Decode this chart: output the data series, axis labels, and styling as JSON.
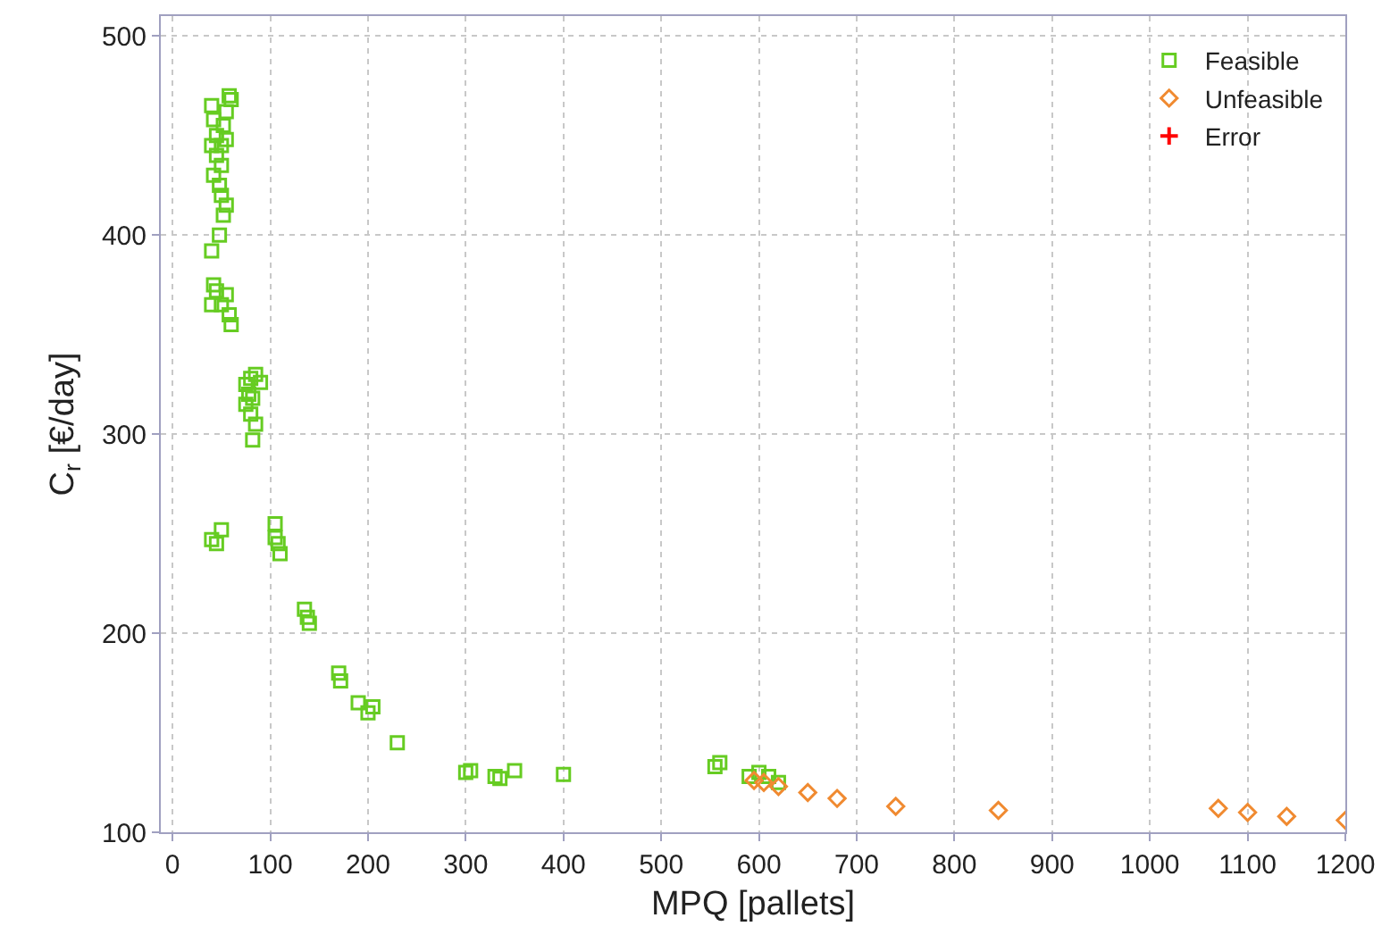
{
  "chart_data": {
    "type": "scatter",
    "xlabel": "MPQ [pallets]",
    "ylabel": "C$_{r}$ [€/day]",
    "xlim": [
      -12,
      1200
    ],
    "ylim": [
      100,
      510
    ],
    "xticks": [
      0,
      100,
      200,
      300,
      400,
      500,
      600,
      700,
      800,
      900,
      1000,
      1100,
      1200
    ],
    "yticks": [
      100,
      200,
      300,
      400,
      500
    ],
    "grid": true,
    "legend": "top right",
    "series": [
      {
        "name": "Feasible",
        "color": "#66cc22",
        "marker": "square",
        "x": [
          40,
          42,
          45,
          40,
          45,
          50,
          42,
          48,
          50,
          55,
          52,
          48,
          40,
          42,
          45,
          50,
          40,
          55,
          58,
          60,
          55,
          58,
          60,
          52,
          55,
          50,
          75,
          80,
          85,
          90,
          78,
          82,
          75,
          80,
          85,
          82,
          40,
          45,
          50,
          105,
          105,
          108,
          110,
          135,
          138,
          140,
          170,
          172,
          190,
          200,
          205,
          230,
          300,
          305,
          330,
          335,
          350,
          400,
          555,
          560,
          590,
          600,
          610,
          620
        ],
        "values": [
          465,
          458,
          450,
          445,
          440,
          435,
          430,
          425,
          420,
          415,
          410,
          400,
          392,
          375,
          372,
          365,
          365,
          370,
          360,
          355,
          462,
          470,
          468,
          455,
          448,
          445,
          325,
          328,
          330,
          326,
          320,
          318,
          315,
          310,
          305,
          297,
          247,
          245,
          252,
          255,
          248,
          245,
          240,
          212,
          208,
          205,
          180,
          176,
          165,
          160,
          163,
          145,
          130,
          131,
          128,
          127,
          131,
          129,
          133,
          135,
          128,
          130,
          128,
          125
        ]
      },
      {
        "name": "Unfeasible",
        "color": "#f08a30",
        "marker": "diamond",
        "x": [
          595,
          605,
          620,
          650,
          680,
          740,
          845,
          1070,
          1100,
          1140,
          1200
        ],
        "values": [
          126,
          125,
          123,
          120,
          117,
          113,
          111,
          112,
          110,
          108,
          106
        ]
      },
      {
        "name": "Error",
        "color": "#ff0000",
        "marker": "cross"
      }
    ]
  }
}
